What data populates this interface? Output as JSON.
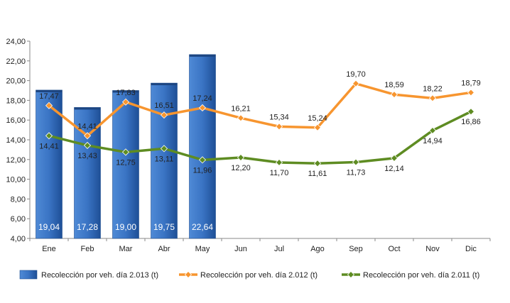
{
  "chart_data": {
    "type": "bar",
    "categories": [
      "Ene",
      "Feb",
      "Mar",
      "Abr",
      "May",
      "Jun",
      "Jul",
      "Ago",
      "Sep",
      "Oct",
      "Nov",
      "Dic"
    ],
    "ylim": [
      4,
      24
    ],
    "yticks": [
      "4,00",
      "6,00",
      "8,00",
      "10,00",
      "12,00",
      "14,00",
      "16,00",
      "18,00",
      "20,00",
      "22,00",
      "24,00"
    ],
    "grid": false,
    "legend_position": "bottom",
    "series": [
      {
        "name": "Recolección por veh. día 2.013 (t)",
        "kind": "bar",
        "color": "#3a78c8",
        "values": [
          19.04,
          17.28,
          19.0,
          19.75,
          22.64,
          null,
          null,
          null,
          null,
          null,
          null,
          null
        ],
        "labels": [
          "19,04",
          "17,28",
          "19,00",
          "19,75",
          "22,64",
          "",
          "",
          "",
          "",
          "",
          "",
          ""
        ]
      },
      {
        "name": "Recolección por veh. día 2.012 (t)",
        "kind": "line",
        "color": "#f7952f",
        "values": [
          17.47,
          14.41,
          17.83,
          16.51,
          17.24,
          16.21,
          15.34,
          15.24,
          19.7,
          18.59,
          18.22,
          18.79
        ],
        "labels": [
          "17,47",
          "14,41",
          "17,83",
          "16,51",
          "17,24",
          "16,21",
          "15,34",
          "15,24",
          "19,70",
          "18,59",
          "18,22",
          "18,79"
        ]
      },
      {
        "name": "Recolección por veh. día 2.011 (t)",
        "kind": "line",
        "color": "#5e8c22",
        "values": [
          14.41,
          13.43,
          12.75,
          13.11,
          11.96,
          12.2,
          11.7,
          11.61,
          11.73,
          12.14,
          14.94,
          16.86
        ],
        "labels": [
          "14,41",
          "13,43",
          "12,75",
          "13,11",
          "11,96",
          "12,20",
          "11,70",
          "11,61",
          "11,73",
          "12,14",
          "14,94",
          "16,86"
        ]
      }
    ]
  }
}
